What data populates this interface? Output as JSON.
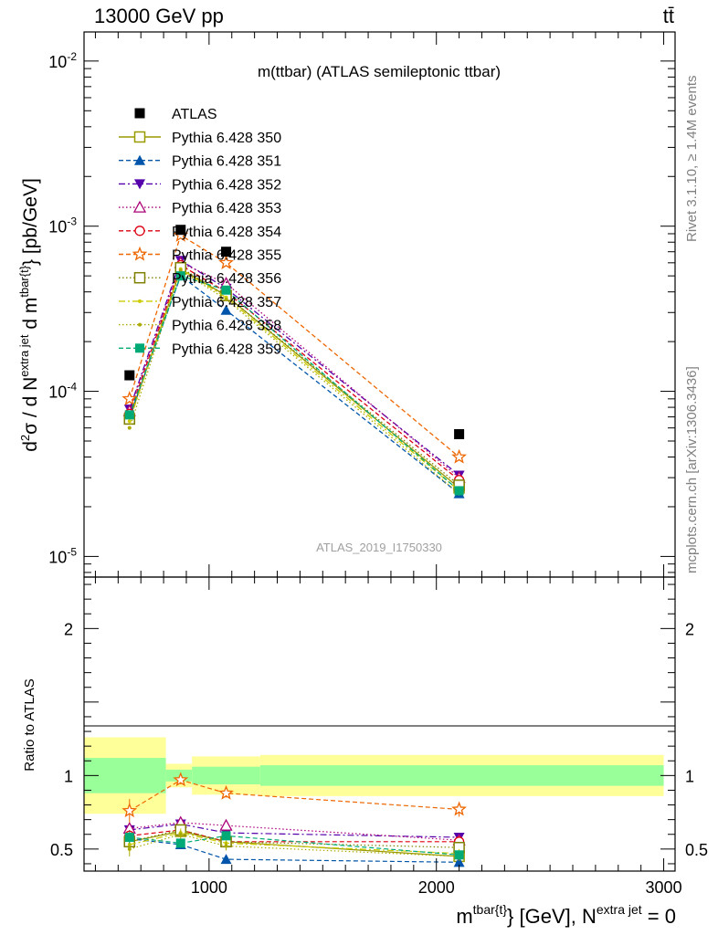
{
  "header": {
    "left": "13000 GeV pp",
    "right": "tt̄"
  },
  "side_text": {
    "rivet": "Rivet 3.1.10, ≥ 1.4M events",
    "mcplots": "mcplots.cern.ch [arXiv:1306.3436]"
  },
  "colors": {
    "band_outer": "#ffff99",
    "band_inner": "#99ff99",
    "s350": "#999900",
    "s351": "#0055aa",
    "s352": "#5500aa",
    "s353": "#aa0077",
    "s354": "#dd0011",
    "s355": "#ee6600",
    "s356": "#808000",
    "s357": "#cccc00",
    "s358": "#aaaa00",
    "s359": "#00aa77"
  },
  "chart_data": [
    {
      "type": "line",
      "panel": "main",
      "title": "m(ttbar) (ATLAS semileptonic ttbar)",
      "watermark": "ATLAS_2019_I1750330",
      "ylabel": "d²σ / d N^{extra jet} d m^{tbar{t}} [pb/GeV]",
      "yscale": "log",
      "ylim": [
        7.5e-06,
        0.015
      ],
      "xlim": [
        450,
        3050
      ],
      "ytick_labels": [
        "10^{-5}",
        "10^{-4}",
        "10^{-3}",
        "10^{-2}"
      ],
      "legend_position": "top-left",
      "x": [
        650,
        875,
        1075,
        2100
      ],
      "data": {
        "name": "ATLAS",
        "values": [
          0.000125,
          0.00095,
          0.0007,
          5.5e-05
        ]
      },
      "series": [
        {
          "name": "Pythia 6.428 350",
          "values": [
            6.8e-05,
            0.00055,
            0.00038,
            2.6e-05
          ]
        },
        {
          "name": "Pythia 6.428 351",
          "values": [
            7e-05,
            0.0005,
            0.00031,
            2.4e-05
          ]
        },
        {
          "name": "Pythia 6.428 352",
          "values": [
            7.8e-05,
            0.00062,
            0.00042,
            3.1e-05
          ]
        },
        {
          "name": "Pythia 6.428 353",
          "values": [
            7.6e-05,
            0.0006,
            0.00045,
            3e-05
          ]
        },
        {
          "name": "Pythia 6.428 354",
          "values": [
            7.3e-05,
            0.00058,
            0.0004,
            2.9e-05
          ]
        },
        {
          "name": "Pythia 6.428 355",
          "values": [
            9e-05,
            0.00088,
            0.0006,
            4e-05
          ]
        },
        {
          "name": "Pythia 6.428 356",
          "values": [
            6.8e-05,
            0.00056,
            0.00038,
            2.7e-05
          ]
        },
        {
          "name": "Pythia 6.428 357",
          "values": [
            6.6e-05,
            0.00055,
            0.00037,
            2.5e-05
          ]
        },
        {
          "name": "Pythia 6.428 358",
          "values": [
            6e-05,
            0.00054,
            0.00036,
            2.4e-05
          ]
        },
        {
          "name": "Pythia 6.428 359",
          "values": [
            7.2e-05,
            0.0005,
            0.00041,
            2.5e-05
          ]
        }
      ]
    },
    {
      "type": "line",
      "panel": "ratio",
      "ylabel": "Ratio to ATLAS",
      "xlabel": "m^{tbar{t}} [GeV], N^{extra jet} = 0",
      "ylim": [
        0.35,
        2.35
      ],
      "xlim": [
        450,
        3050
      ],
      "xtick_labels": [
        "1000",
        "2000",
        "3000"
      ],
      "ytick_labels": [
        "0.5",
        "1",
        "2"
      ],
      "x": [
        650,
        875,
        1075,
        2100
      ],
      "bands": [
        {
          "x": [
            450,
            810
          ],
          "outer": [
            0.74,
            1.26
          ],
          "inner": [
            0.88,
            1.12
          ]
        },
        {
          "x": [
            810,
            925
          ],
          "outer": [
            0.92,
            1.08
          ],
          "inner": [
            0.96,
            1.04
          ]
        },
        {
          "x": [
            925,
            1225
          ],
          "outer": [
            0.87,
            1.13
          ],
          "inner": [
            0.94,
            1.06
          ]
        },
        {
          "x": [
            1225,
            3000
          ],
          "outer": [
            0.86,
            1.14
          ],
          "inner": [
            0.93,
            1.07
          ]
        }
      ],
      "series": [
        {
          "name": "Pythia 6.428 350",
          "values": [
            0.55,
            0.62,
            0.55,
            0.45
          ],
          "err": [
            0.04,
            0.04,
            0.03,
            0.04
          ]
        },
        {
          "name": "Pythia 6.428 351",
          "values": [
            0.57,
            0.53,
            0.43,
            0.41
          ],
          "err": [
            0.04,
            0.03,
            0.03,
            0.03
          ]
        },
        {
          "name": "Pythia 6.428 352",
          "values": [
            0.63,
            0.67,
            0.61,
            0.58
          ],
          "err": [
            0.04,
            0.03,
            0.03,
            0.03
          ]
        },
        {
          "name": "Pythia 6.428 353",
          "values": [
            0.64,
            0.68,
            0.66,
            0.56
          ],
          "err": [
            0.04,
            0.03,
            0.03,
            0.03
          ]
        },
        {
          "name": "Pythia 6.428 354",
          "values": [
            0.59,
            0.63,
            0.55,
            0.55
          ],
          "err": [
            0.04,
            0.03,
            0.03,
            0.03
          ]
        },
        {
          "name": "Pythia 6.428 355",
          "values": [
            0.76,
            0.97,
            0.88,
            0.77
          ],
          "err": [
            0.08,
            0.03,
            0.03,
            0.05
          ]
        },
        {
          "name": "Pythia 6.428 356",
          "values": [
            0.55,
            0.63,
            0.55,
            0.51
          ],
          "err": [
            0.04,
            0.03,
            0.03,
            0.03
          ]
        },
        {
          "name": "Pythia 6.428 357",
          "values": [
            0.53,
            0.61,
            0.54,
            0.47
          ],
          "err": [
            0.04,
            0.03,
            0.03,
            0.03
          ]
        },
        {
          "name": "Pythia 6.428 358",
          "values": [
            0.5,
            0.6,
            0.52,
            0.45
          ],
          "err": [
            0.05,
            0.03,
            0.03,
            0.03
          ]
        },
        {
          "name": "Pythia 6.428 359",
          "values": [
            0.58,
            0.54,
            0.59,
            0.46
          ],
          "err": [
            0.04,
            0.03,
            0.03,
            0.03
          ]
        }
      ]
    }
  ]
}
